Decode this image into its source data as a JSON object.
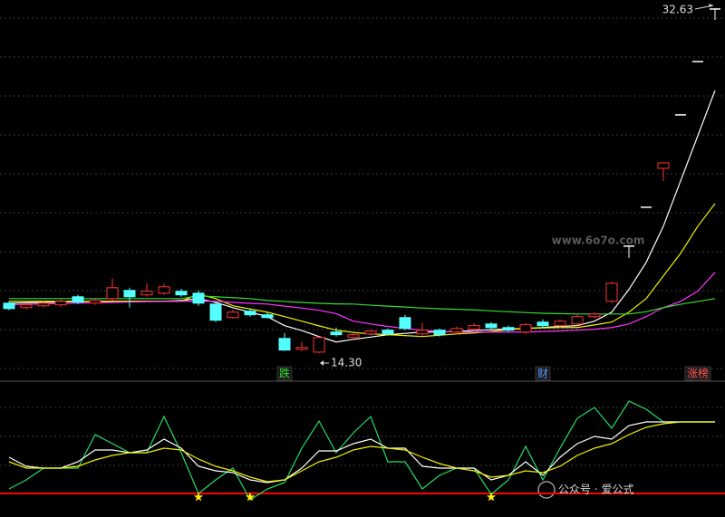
{
  "chart_data": [
    {
      "type": "candlestick",
      "ylim": [
        12.85,
        33.11
      ],
      "up_color": "#ff3333",
      "down_color": "#54ffff",
      "flat_color": "#ffffff",
      "open": [
        16.96,
        16.72,
        16.82,
        16.87,
        17.3,
        16.96,
        17.2,
        17.64,
        17.4,
        17.49,
        17.59,
        17.49,
        16.91,
        16.19,
        16.53,
        16.34,
        15.08,
        14.5,
        14.35,
        15.42,
        15.13,
        15.32,
        15.52,
        16.19,
        15.32,
        15.52,
        15.42,
        15.57,
        15.85,
        15.66,
        15.42,
        15.95,
        15.76,
        15.85,
        16.24,
        17.06,
        20.0,
        22.07,
        24.14,
        26.99,
        29.83,
        32.63
      ],
      "high": [
        17.06,
        16.96,
        17.06,
        17.16,
        17.4,
        17.2,
        18.27,
        17.78,
        18.02,
        17.98,
        17.73,
        17.64,
        17.01,
        16.58,
        16.67,
        16.48,
        15.37,
        14.89,
        15.18,
        15.66,
        15.37,
        15.57,
        15.61,
        16.34,
        15.9,
        15.61,
        15.71,
        15.9,
        15.95,
        15.76,
        15.9,
        16.1,
        16.1,
        16.34,
        16.48,
        18.12,
        20.0,
        22.07,
        24.43,
        26.99,
        29.83,
        32.63
      ],
      "low": [
        16.58,
        16.63,
        16.72,
        16.77,
        16.91,
        16.87,
        17.11,
        16.72,
        17.3,
        17.4,
        17.3,
        16.82,
        15.95,
        16.14,
        16.24,
        16.14,
        14.41,
        14.41,
        14.3,
        15.18,
        15.03,
        15.23,
        15.23,
        15.52,
        15.23,
        15.18,
        15.28,
        15.47,
        15.57,
        15.42,
        15.32,
        15.66,
        15.66,
        15.76,
        16.14,
        16.96,
        19.37,
        22.07,
        23.47,
        26.99,
        29.83,
        32.05
      ],
      "close": [
        16.67,
        16.87,
        16.96,
        17.06,
        17.01,
        17.11,
        17.78,
        17.3,
        17.59,
        17.83,
        17.4,
        16.96,
        16.05,
        16.48,
        16.34,
        16.19,
        14.46,
        14.6,
        15.13,
        15.28,
        15.28,
        15.47,
        15.32,
        15.61,
        15.52,
        15.28,
        15.61,
        15.76,
        15.66,
        15.52,
        15.81,
        15.76,
        16.0,
        16.24,
        16.38,
        18.02,
        20.0,
        22.07,
        24.43,
        26.99,
        29.83,
        32.63
      ],
      "series": [
        {
          "color": "#ffffff",
          "values": [
            16.96,
            16.98,
            17.0,
            17.02,
            17.04,
            17.06,
            17.06,
            17.06,
            17.06,
            17.06,
            17.1,
            17.2,
            17.0,
            16.72,
            16.48,
            16.24,
            15.76,
            15.5,
            15.18,
            14.89,
            15.03,
            15.15,
            15.28,
            15.35,
            15.42,
            15.42,
            15.45,
            15.5,
            15.55,
            15.58,
            15.61,
            15.66,
            15.72,
            15.76,
            16.0,
            16.48,
            17.69,
            19.13,
            21.06,
            23.47,
            25.88,
            28.29
          ]
        },
        {
          "color": "#f0f000",
          "values": [
            17.06,
            17.06,
            17.06,
            17.06,
            17.06,
            17.06,
            17.06,
            17.06,
            17.06,
            17.06,
            17.06,
            17.44,
            17.2,
            16.82,
            16.65,
            16.48,
            16.24,
            16.0,
            15.75,
            15.52,
            15.4,
            15.32,
            15.28,
            15.23,
            15.18,
            15.25,
            15.32,
            15.37,
            15.45,
            15.55,
            15.61,
            15.64,
            15.66,
            15.66,
            15.8,
            15.95,
            16.48,
            17.2,
            18.41,
            19.61,
            21.06,
            22.26
          ]
        },
        {
          "color": "#ff33ff",
          "values": [
            16.87,
            16.9,
            16.92,
            16.94,
            16.96,
            16.98,
            17.0,
            17.02,
            17.04,
            17.05,
            17.06,
            17.06,
            17.06,
            17.0,
            16.95,
            16.91,
            16.8,
            16.7,
            16.58,
            16.4,
            16.0,
            15.85,
            15.72,
            15.61,
            15.52,
            15.45,
            15.42,
            15.42,
            15.42,
            15.42,
            15.42,
            15.45,
            15.48,
            15.52,
            15.57,
            15.66,
            15.85,
            16.24,
            16.72,
            17.05,
            17.6,
            18.6
          ]
        },
        {
          "color": "#33dd33",
          "values": [
            17.2,
            17.2,
            17.2,
            17.2,
            17.2,
            17.2,
            17.2,
            17.2,
            17.2,
            17.2,
            17.2,
            17.35,
            17.3,
            17.25,
            17.2,
            17.1,
            17.05,
            17.0,
            16.95,
            16.92,
            16.91,
            16.85,
            16.8,
            16.75,
            16.7,
            16.66,
            16.63,
            16.6,
            16.55,
            16.5,
            16.46,
            16.42,
            16.4,
            16.38,
            16.38,
            16.38,
            16.38,
            16.5,
            16.72,
            16.9,
            17.05,
            17.2
          ]
        }
      ],
      "annotations": [
        {
          "text": "32.63",
          "index": 41
        },
        {
          "text": "14.30",
          "index": 18
        }
      ],
      "signals": [
        {
          "label": "跌",
          "index": 16,
          "color": "#33dd33"
        },
        {
          "label": "财",
          "index": 31,
          "color": "#5599ff"
        },
        {
          "label": "涨榜",
          "index": 40,
          "color": "#ff5555"
        }
      ],
      "watermark": "www.6o7o.com"
    },
    {
      "type": "line",
      "ylim": [
        -26,
        125
      ],
      "series": [
        {
          "color": "#22dd66",
          "values": [
            5,
            15,
            28,
            28,
            28,
            65,
            55,
            45,
            45,
            85,
            45,
            0,
            15,
            28,
            -7,
            5,
            12,
            50,
            80,
            45,
            67,
            85,
            35,
            35,
            5,
            20,
            28,
            28,
            -1,
            15,
            52,
            15,
            50,
            83,
            95,
            72,
            102,
            93,
            79,
            79,
            79,
            79
          ]
        },
        {
          "color": "#ffffff",
          "values": [
            40,
            30,
            28,
            28,
            35,
            48,
            48,
            45,
            48,
            60,
            50,
            30,
            25,
            23,
            15,
            12,
            15,
            28,
            47,
            47,
            55,
            60,
            50,
            50,
            30,
            28,
            28,
            28,
            15,
            20,
            35,
            20,
            40,
            55,
            63,
            60,
            75,
            79,
            79,
            79,
            79,
            79
          ]
        },
        {
          "color": "#f0f000",
          "values": [
            35,
            28,
            28,
            28,
            30,
            37,
            42,
            45,
            45,
            50,
            48,
            38,
            30,
            25,
            18,
            13,
            15,
            25,
            35,
            40,
            48,
            52,
            50,
            48,
            40,
            33,
            28,
            25,
            18,
            20,
            25,
            23,
            30,
            42,
            50,
            55,
            65,
            73,
            77,
            79,
            79,
            79
          ]
        }
      ],
      "reference_line": {
        "value": 0,
        "color": "#ff0000"
      },
      "stars": {
        "indices": [
          11,
          14,
          28
        ],
        "color": "#ffee00"
      },
      "watermark": "公众号 · 爱公式"
    }
  ]
}
